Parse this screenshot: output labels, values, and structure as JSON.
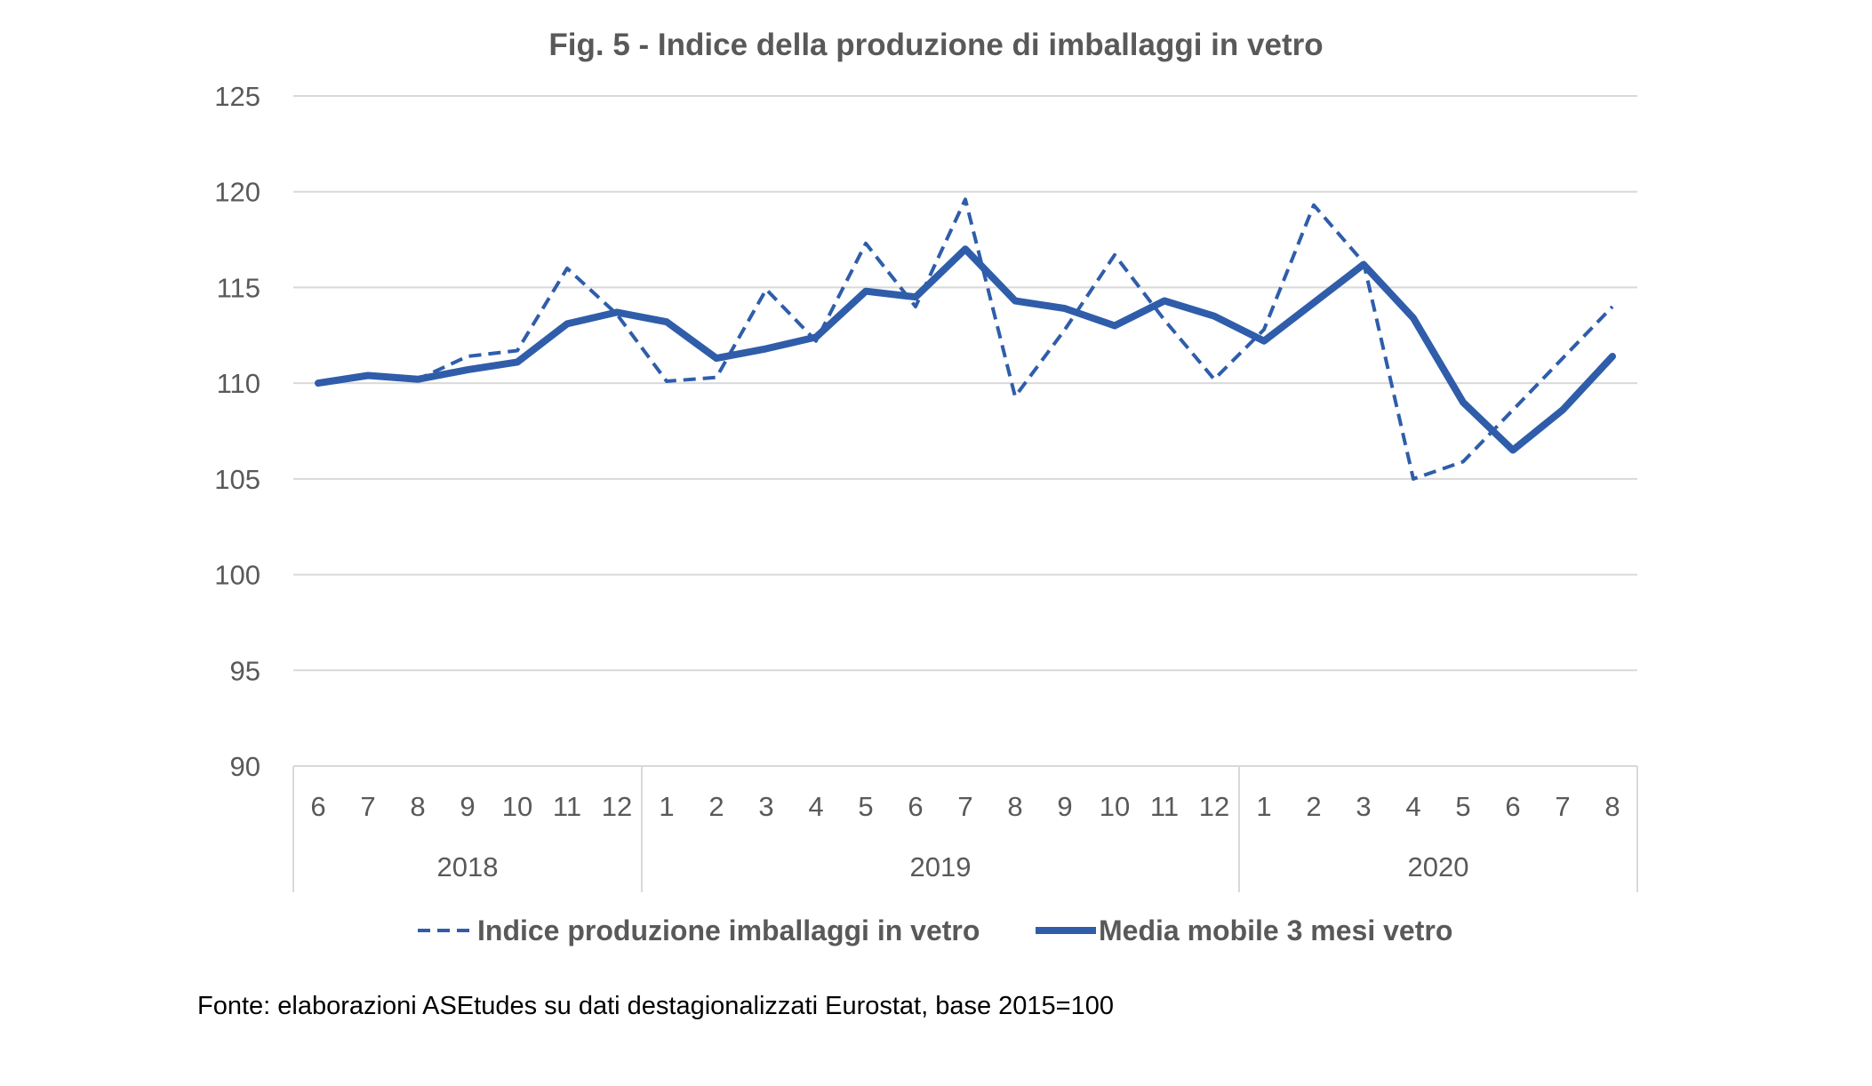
{
  "chart_data": {
    "type": "line",
    "title": "Fig. 5 - Indice della produzione di imballaggi in vetro",
    "xlabel": "",
    "ylabel": "",
    "ylim": [
      90,
      125
    ],
    "yticks": [
      90,
      95,
      100,
      105,
      110,
      115,
      120,
      125
    ],
    "grid": true,
    "legend_position": "bottom",
    "categories": [
      "6",
      "7",
      "8",
      "9",
      "10",
      "11",
      "12",
      "1",
      "2",
      "3",
      "4",
      "5",
      "6",
      "7",
      "8",
      "9",
      "10",
      "11",
      "12",
      "1",
      "2",
      "3",
      "4",
      "5",
      "6",
      "7",
      "8"
    ],
    "groups": [
      {
        "label": "2018",
        "count": 7
      },
      {
        "label": "2019",
        "count": 12
      },
      {
        "label": "2020",
        "count": 8
      }
    ],
    "series": [
      {
        "name": "Indice produzione imballaggi in vetro",
        "style": "dashed",
        "color": "#2F5DAA",
        "values": [
          110.0,
          110.4,
          110.2,
          111.4,
          111.7,
          116.0,
          113.6,
          110.1,
          110.3,
          114.9,
          112.2,
          117.3,
          114.0,
          119.6,
          109.3,
          112.8,
          116.7,
          113.3,
          110.2,
          112.8,
          119.3,
          116.3,
          105.0,
          105.9,
          108.6,
          111.3,
          114.0
        ]
      },
      {
        "name": "Media mobile 3 mesi vetro",
        "style": "solid",
        "color": "#2F5DAA",
        "values": [
          110.0,
          110.4,
          110.2,
          110.7,
          111.1,
          113.1,
          113.7,
          113.2,
          111.3,
          111.8,
          112.4,
          114.8,
          114.5,
          117.0,
          114.3,
          113.9,
          113.0,
          114.3,
          113.5,
          112.2,
          114.2,
          116.2,
          113.4,
          109.0,
          106.5,
          108.6,
          111.4
        ]
      }
    ]
  },
  "source_note": "Fonte: elaborazioni ASEtudes su dati destagionalizzati Eurostat, base 2015=100"
}
